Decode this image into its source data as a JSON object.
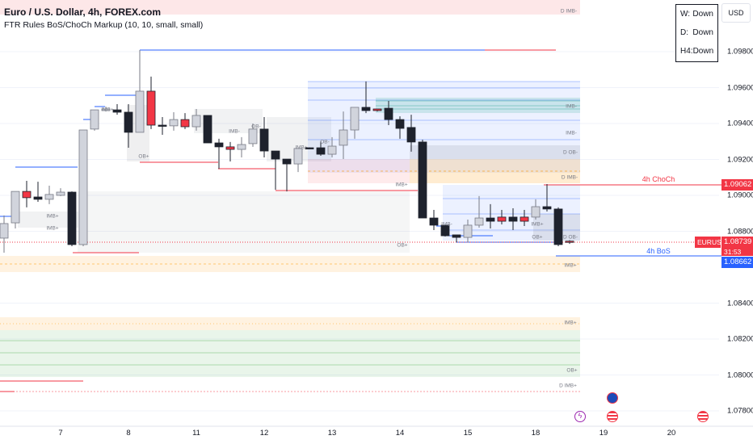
{
  "header": {
    "symbol_title": "Euro / U.S. Dollar, 4h, FOREX.com",
    "indicator_title": "FTR Rules BoS/ChoCh Markup (10, 10, small, small)"
  },
  "trend_table": [
    {
      "tf": "W:",
      "dir": "Down"
    },
    {
      "tf": "D:",
      "dir": "Down"
    },
    {
      "tf": "H4:",
      "dir": "Down"
    }
  ],
  "currency_button": "USD",
  "price_scale": [
    "1.09800",
    "1.09600",
    "1.09400",
    "1.09200",
    "1.09000",
    "1.08800",
    "1.08400",
    "1.08200",
    "1.08000",
    "1.07800"
  ],
  "price_tags": {
    "choch": "1.09062",
    "symbol": "EURUSD",
    "last": "1.08739",
    "countdown": "31:53",
    "bos": "1.08662"
  },
  "annotations": {
    "choch": "4h ChoCh",
    "bos": "4h BoS"
  },
  "dates": [
    "7",
    "8",
    "11",
    "12",
    "13",
    "14",
    "15",
    "18",
    "19",
    "20"
  ],
  "zone_labels": [
    "D IMB-",
    "IMB+",
    "IMB+",
    "IMB+",
    "OB+",
    "IMB-",
    "OB-",
    "IMB+",
    "OB-",
    "IMB+",
    "OB+",
    "IMB-",
    "IMB+",
    "OB+",
    "IMB-",
    "IMB-",
    "D OB-",
    "D IMB-",
    "D OB-",
    "IMB+",
    "IMB+",
    "OB+",
    "D IMB+"
  ],
  "colors": {
    "up": "#d1d4dc",
    "down": "#1e222d",
    "highlight": "#f23645",
    "bos": "#2962ff",
    "choch": "#f23645"
  },
  "events": [
    "lightning-icon",
    "globe-icon",
    "us-flag-icon",
    "us-flag-icon"
  ],
  "chart_data": {
    "type": "candlestick",
    "symbol": "EURUSD",
    "timeframe": "4h",
    "ylim": [
      1.0775,
      1.099
    ],
    "candles": [
      {
        "o": 1.08762,
        "h": 1.08888,
        "l": 1.08681,
        "c": 1.08843,
        "t": "u"
      },
      {
        "o": 1.08847,
        "h": 1.09022,
        "l": 1.08816,
        "c": 1.09022,
        "t": "u"
      },
      {
        "o": 1.09022,
        "h": 1.09081,
        "l": 1.08933,
        "c": 1.08987,
        "t": "r"
      },
      {
        "o": 1.08991,
        "h": 1.09076,
        "l": 1.08964,
        "c": 1.08978,
        "t": "d"
      },
      {
        "o": 1.08978,
        "h": 1.09054,
        "l": 1.08951,
        "c": 1.09005,
        "t": "u"
      },
      {
        "o": 1.09,
        "h": 1.0904,
        "l": 1.08996,
        "c": 1.09018,
        "t": "u"
      },
      {
        "o": 1.09018,
        "h": 1.09022,
        "l": 1.08717,
        "c": 1.08726,
        "t": "d"
      },
      {
        "o": 1.08726,
        "h": 1.09364,
        "l": 1.08717,
        "c": 1.09364,
        "t": "u"
      },
      {
        "o": 1.09369,
        "h": 1.09476,
        "l": 1.0936,
        "c": 1.09476,
        "t": "u"
      },
      {
        "o": 1.09472,
        "h": 1.09494,
        "l": 1.09467,
        "c": 1.09481,
        "t": "u"
      },
      {
        "o": 1.09476,
        "h": 1.09508,
        "l": 1.09449,
        "c": 1.09463,
        "t": "d"
      },
      {
        "o": 1.09463,
        "h": 1.09508,
        "l": 1.09265,
        "c": 1.09351,
        "t": "d"
      },
      {
        "o": 1.09351,
        "h": 1.09809,
        "l": 1.09351,
        "c": 1.0958,
        "t": "u"
      },
      {
        "o": 1.0958,
        "h": 1.09661,
        "l": 1.09369,
        "c": 1.09391,
        "t": "r"
      },
      {
        "o": 1.09391,
        "h": 1.09436,
        "l": 1.09337,
        "c": 1.09387,
        "t": "d"
      },
      {
        "o": 1.09387,
        "h": 1.09463,
        "l": 1.0936,
        "c": 1.09422,
        "t": "u"
      },
      {
        "o": 1.09422,
        "h": 1.09458,
        "l": 1.09369,
        "c": 1.09382,
        "t": "r"
      },
      {
        "o": 1.09382,
        "h": 1.09481,
        "l": 1.0936,
        "c": 1.09445,
        "t": "u"
      },
      {
        "o": 1.09445,
        "h": 1.09445,
        "l": 1.09292,
        "c": 1.09292,
        "t": "d"
      },
      {
        "o": 1.09292,
        "h": 1.09315,
        "l": 1.09148,
        "c": 1.0927,
        "t": "d"
      },
      {
        "o": 1.0927,
        "h": 1.09297,
        "l": 1.09189,
        "c": 1.09256,
        "t": "r"
      },
      {
        "o": 1.09256,
        "h": 1.09324,
        "l": 1.09211,
        "c": 1.09283,
        "t": "u"
      },
      {
        "o": 1.09288,
        "h": 1.094,
        "l": 1.0927,
        "c": 1.09369,
        "t": "u"
      },
      {
        "o": 1.09369,
        "h": 1.09436,
        "l": 1.09211,
        "c": 1.09247,
        "t": "d"
      },
      {
        "o": 1.09247,
        "h": 1.09247,
        "l": 1.09031,
        "c": 1.09202,
        "t": "d"
      },
      {
        "o": 1.09202,
        "h": 1.09202,
        "l": 1.09022,
        "c": 1.09175,
        "t": "d"
      },
      {
        "o": 1.09175,
        "h": 1.09261,
        "l": 1.0913,
        "c": 1.09261,
        "t": "u"
      },
      {
        "o": 1.09265,
        "h": 1.09267,
        "l": 1.09261,
        "c": 1.09263,
        "t": "d"
      },
      {
        "o": 1.09265,
        "h": 1.09301,
        "l": 1.0922,
        "c": 1.09229,
        "t": "d"
      },
      {
        "o": 1.09229,
        "h": 1.09324,
        "l": 1.09211,
        "c": 1.09274,
        "t": "u"
      },
      {
        "o": 1.09279,
        "h": 1.09467,
        "l": 1.09202,
        "c": 1.09364,
        "t": "u"
      },
      {
        "o": 1.09364,
        "h": 1.0949,
        "l": 1.09315,
        "c": 1.0949,
        "t": "u"
      },
      {
        "o": 1.0949,
        "h": 1.09634,
        "l": 1.09458,
        "c": 1.09472,
        "t": "d"
      },
      {
        "o": 1.09481,
        "h": 1.09481,
        "l": 1.09467,
        "c": 1.09472,
        "t": "r"
      },
      {
        "o": 1.09485,
        "h": 1.09526,
        "l": 1.09391,
        "c": 1.09422,
        "t": "d"
      },
      {
        "o": 1.09422,
        "h": 1.0944,
        "l": 1.09315,
        "c": 1.09373,
        "t": "d"
      },
      {
        "o": 1.09378,
        "h": 1.09449,
        "l": 1.09243,
        "c": 1.09297,
        "t": "d"
      },
      {
        "o": 1.09297,
        "h": 1.0931,
        "l": 1.08874,
        "c": 1.08874,
        "t": "d"
      },
      {
        "o": 1.08874,
        "h": 1.08919,
        "l": 1.08807,
        "c": 1.08834,
        "t": "d"
      },
      {
        "o": 1.08834,
        "h": 1.08834,
        "l": 1.08771,
        "c": 1.08775,
        "t": "d"
      },
      {
        "o": 1.0878,
        "h": 1.0878,
        "l": 1.08739,
        "c": 1.08766,
        "t": "d"
      },
      {
        "o": 1.08766,
        "h": 1.08865,
        "l": 1.08739,
        "c": 1.08834,
        "t": "u"
      },
      {
        "o": 1.08834,
        "h": 1.08996,
        "l": 1.0882,
        "c": 1.08874,
        "t": "u"
      },
      {
        "o": 1.08874,
        "h": 1.08951,
        "l": 1.08816,
        "c": 1.08856,
        "t": "d"
      },
      {
        "o": 1.08879,
        "h": 1.08919,
        "l": 1.08838,
        "c": 1.08856,
        "t": "r"
      },
      {
        "o": 1.08879,
        "h": 1.08928,
        "l": 1.08807,
        "c": 1.08856,
        "t": "d"
      },
      {
        "o": 1.08879,
        "h": 1.08919,
        "l": 1.08829,
        "c": 1.08856,
        "t": "r"
      },
      {
        "o": 1.08879,
        "h": 1.08978,
        "l": 1.08865,
        "c": 1.08937,
        "t": "u"
      },
      {
        "o": 1.08937,
        "h": 1.09063,
        "l": 1.0891,
        "c": 1.08924,
        "t": "d"
      },
      {
        "o": 1.08924,
        "h": 1.08933,
        "l": 1.08717,
        "c": 1.08726,
        "t": "d"
      },
      {
        "o": 1.08745,
        "h": 1.0875,
        "l": 1.0873,
        "c": 1.08739,
        "t": "r"
      }
    ],
    "levels": {
      "choch": 1.09062,
      "bos": 1.08662,
      "last": 1.08739
    }
  }
}
